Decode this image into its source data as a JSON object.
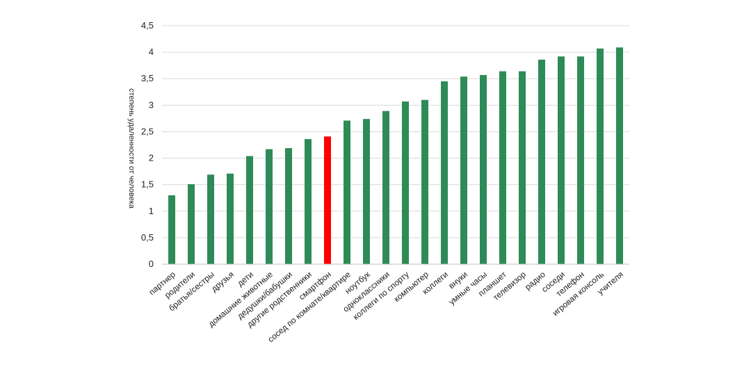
{
  "chart_data": {
    "type": "bar",
    "title": "",
    "xlabel": "",
    "ylabel": "степень удаленности от человека",
    "ylim": [
      0,
      4.5
    ],
    "yticks": [
      "0",
      "0,5",
      "1",
      "1,5",
      "2",
      "2,5",
      "3",
      "3,5",
      "4",
      "4,5"
    ],
    "grid": true,
    "categories": [
      "партнер",
      "родители",
      "братья/сестры",
      "друзья",
      "дети",
      "домашние животные",
      "дедушки/бабушки",
      "другие родственники",
      "смартфон",
      "сосед по комнате/квартире",
      "ноутбук",
      "одноклассники",
      "коллеги по спорту",
      "компьютер",
      "коллеги",
      "внуки",
      "умные часы",
      "планшет",
      "телевизор",
      "радио",
      "соседи",
      "телефон",
      "игровая консоль",
      "учителя"
    ],
    "values": [
      1.3,
      1.51,
      1.69,
      1.71,
      2.04,
      2.17,
      2.19,
      2.36,
      2.41,
      2.71,
      2.74,
      2.89,
      3.07,
      3.1,
      3.45,
      3.54,
      3.57,
      3.64,
      3.64,
      3.86,
      3.92,
      3.92,
      4.07,
      4.09
    ],
    "highlight_index": 8,
    "colors": {
      "bar": "#2e8b57",
      "highlight": "#ff0000",
      "grid": "#d9d9d9",
      "axis": "#bfbfbf"
    }
  }
}
